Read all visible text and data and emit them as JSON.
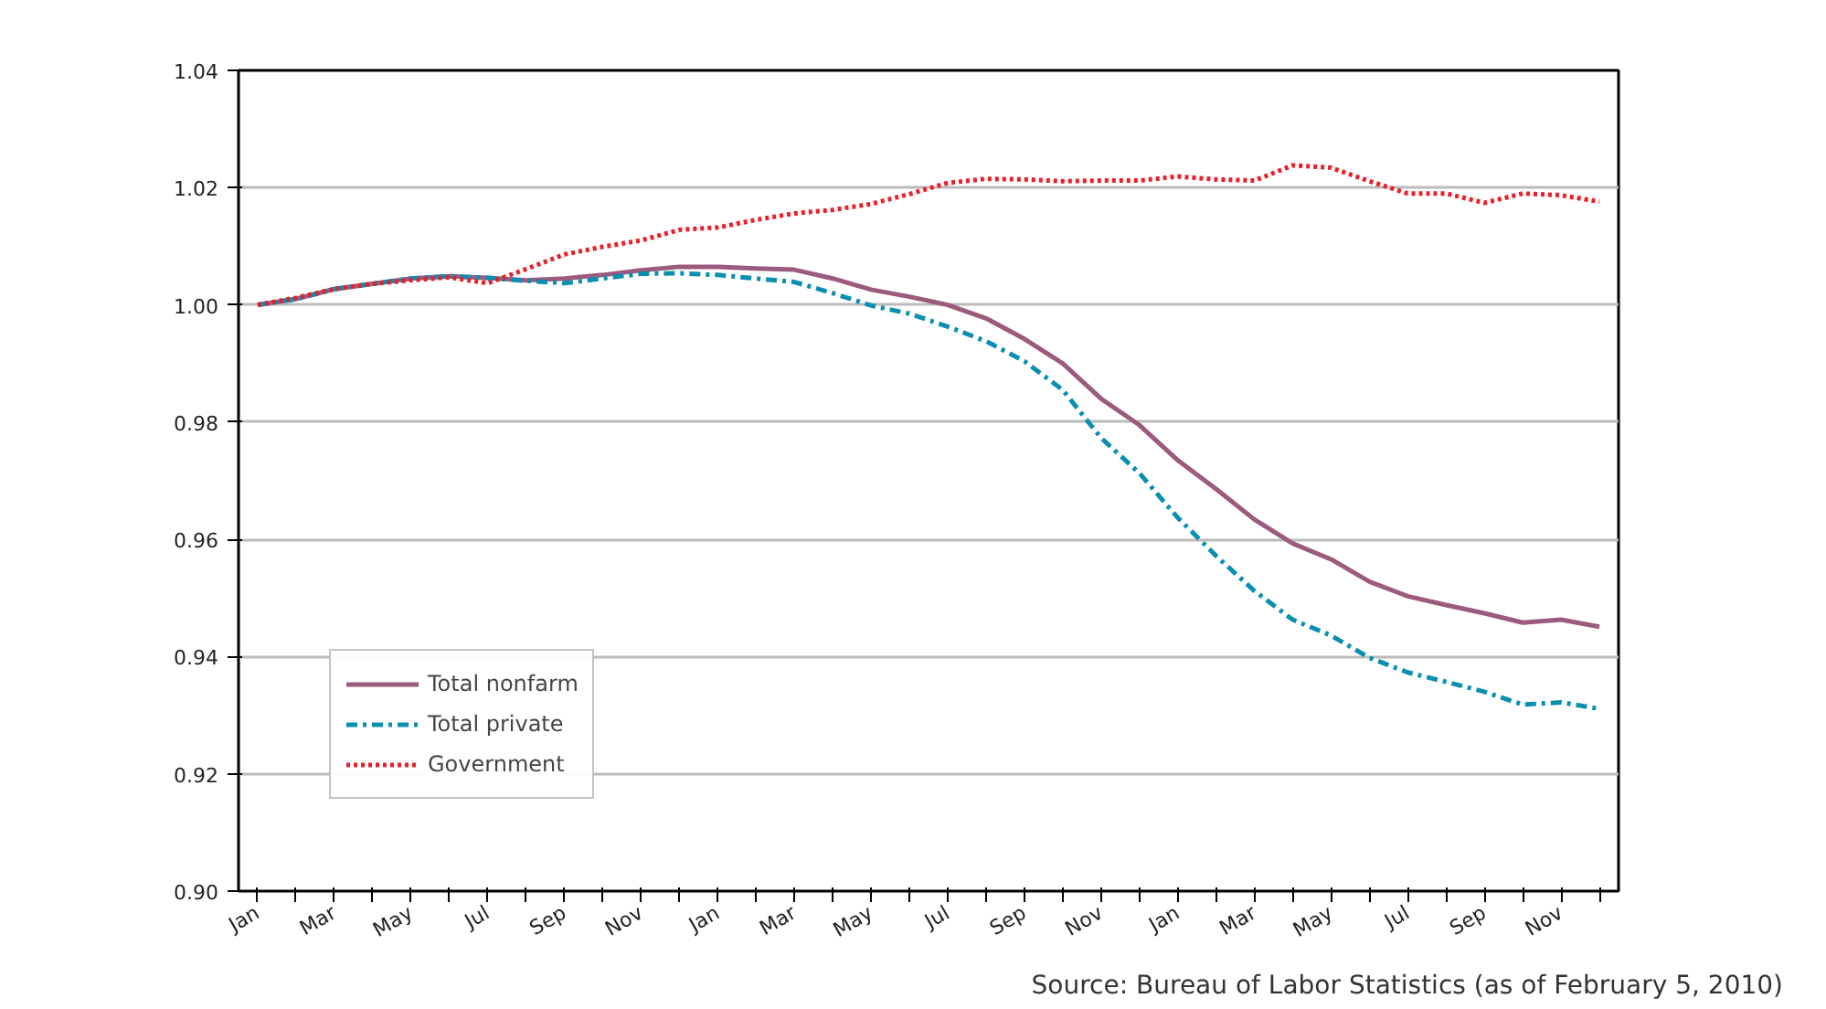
{
  "chart_data": {
    "type": "line",
    "categories": [
      "Jan",
      null,
      "Mar",
      null,
      "May",
      null,
      "Jul",
      null,
      "Sep",
      null,
      "Nov",
      null,
      "Jan",
      null,
      "Mar",
      null,
      "May",
      null,
      "Jul",
      null,
      "Sep",
      null,
      "Nov",
      null,
      "Jan",
      null,
      "Mar",
      null,
      "May",
      null,
      "Jul",
      null,
      "Sep",
      null,
      "Nov",
      null
    ],
    "series": [
      {
        "name": "Total nonfarm",
        "color": "#9b5a7e",
        "line_style": "solid",
        "values": [
          1.0,
          1.001,
          1.0027,
          1.0036,
          1.0045,
          1.0049,
          1.0046,
          1.0042,
          1.0045,
          1.0051,
          1.0059,
          1.0065,
          1.0065,
          1.0062,
          1.006,
          1.0045,
          1.0026,
          1.0014,
          1.0,
          0.9977,
          0.9942,
          0.99,
          0.984,
          0.9795,
          0.9735,
          0.9686,
          0.9634,
          0.9593,
          0.9566,
          0.9528,
          0.9503,
          0.9488,
          0.9474,
          0.9458,
          0.9463,
          0.9451
        ]
      },
      {
        "name": "Total private",
        "color": "#0a8fb0",
        "line_style": "dashdot",
        "values": [
          1.0,
          1.001,
          1.0027,
          1.0036,
          1.0045,
          1.0049,
          1.0046,
          1.0041,
          1.0037,
          1.0045,
          1.0053,
          1.0054,
          1.0051,
          1.0045,
          1.0039,
          1.002,
          0.9999,
          0.9985,
          0.9963,
          0.9938,
          0.9904,
          0.9855,
          0.9773,
          0.9713,
          0.9637,
          0.9572,
          0.9512,
          0.9463,
          0.9436,
          0.9398,
          0.9373,
          0.9357,
          0.934,
          0.9318,
          0.9322,
          0.9311
        ]
      },
      {
        "name": "Government",
        "color": "#e8202a",
        "line_style": "dotted",
        "values": [
          1.0,
          1.0012,
          1.0027,
          1.0036,
          1.0042,
          1.0047,
          1.0037,
          1.0061,
          1.0086,
          1.0099,
          1.011,
          1.0128,
          1.0132,
          1.0145,
          1.0156,
          1.0162,
          1.0172,
          1.0189,
          1.0208,
          1.0215,
          1.0214,
          1.0211,
          1.0212,
          1.0212,
          1.0219,
          1.0214,
          1.0212,
          1.0238,
          1.0234,
          1.0211,
          1.019,
          1.019,
          1.0174,
          1.019,
          1.0187,
          1.0176
        ]
      }
    ],
    "ylim": [
      0.9,
      1.04
    ],
    "yticks": [
      {
        "value": 0.9,
        "label": "0.90"
      },
      0.92,
      0.94,
      0.96,
      0.98,
      {
        "value": 1.0,
        "label": "1.00"
      },
      1.02,
      1.04
    ],
    "grid": "y",
    "legend": "bottom left",
    "marker": "none",
    "annotations": [
      "Source: Bureau of Labor Statistics (as of February 5, 2010)"
    ]
  }
}
